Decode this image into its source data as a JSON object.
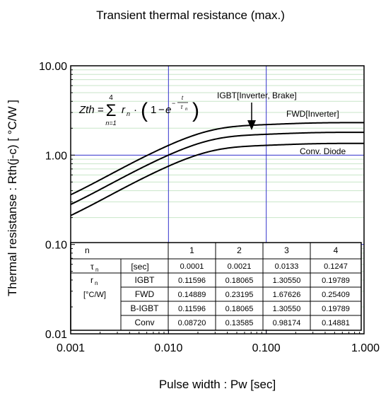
{
  "chart_data": {
    "type": "line",
    "title": "Transient thermal resistance (max.)",
    "xlabel": "Pulse width : Pw [sec]",
    "ylabel": "Thermal resistanse : Rth(j-c) [ °C/W ]",
    "xscale": "log",
    "yscale": "log",
    "xlim": [
      0.001,
      1.0
    ],
    "ylim": [
      0.01,
      10.0
    ],
    "x_ticks": [
      "0.001",
      "0.010",
      "0.100",
      "1.000"
    ],
    "y_ticks": [
      "0.01",
      "0.10",
      "1.00",
      "10.00"
    ],
    "grid": "minor horizontal, major both",
    "formula": "Zth = Σ_{n=1}^{4} r_n · (1 − e^(−t/τ_n))",
    "tau": [
      0.0001,
      0.0021,
      0.0133,
      0.1247
    ],
    "series": [
      {
        "name": "FWD[Inverter]",
        "r": [
          0.14889,
          0.23195,
          1.67626,
          0.25409
        ]
      },
      {
        "name": "IGBT[Inverter, Brake]",
        "r": [
          0.11596,
          0.18065,
          1.3055,
          0.19789
        ]
      },
      {
        "name": "Conv. Diode",
        "r": [
          0.0872,
          0.13585,
          0.98174,
          0.14881
        ]
      }
    ],
    "annotations": [
      "IGBT[Inverter, Brake]",
      "FWD[Inverter]",
      "Conv. Diode"
    ]
  },
  "table": {
    "header": [
      "n",
      "1",
      "2",
      "3",
      "4"
    ],
    "tau_label": "τ",
    "tau_sub": "n",
    "tau_unit": "[sec]",
    "tau_values": [
      "0.0001",
      "0.0021",
      "0.0133",
      "0.1247"
    ],
    "r_label": "r",
    "r_sub": "n",
    "r_unit": "[°C/W]",
    "rows": [
      {
        "label": "IGBT",
        "values": [
          "0.11596",
          "0.18065",
          "1.30550",
          "0.19789"
        ]
      },
      {
        "label": "FWD",
        "values": [
          "0.14889",
          "0.23195",
          "1.67626",
          "0.25409"
        ]
      },
      {
        "label": "B-IGBT",
        "values": [
          "0.11596",
          "0.18065",
          "1.30550",
          "0.19789"
        ]
      },
      {
        "label": "Conv",
        "values": [
          "0.08720",
          "0.13585",
          "0.98174",
          "0.14881"
        ]
      }
    ]
  },
  "colors": {
    "curve": "#000000",
    "major_grid": "#3333cc",
    "minor_grid": "#c8e6c8",
    "frame": "#000000"
  }
}
